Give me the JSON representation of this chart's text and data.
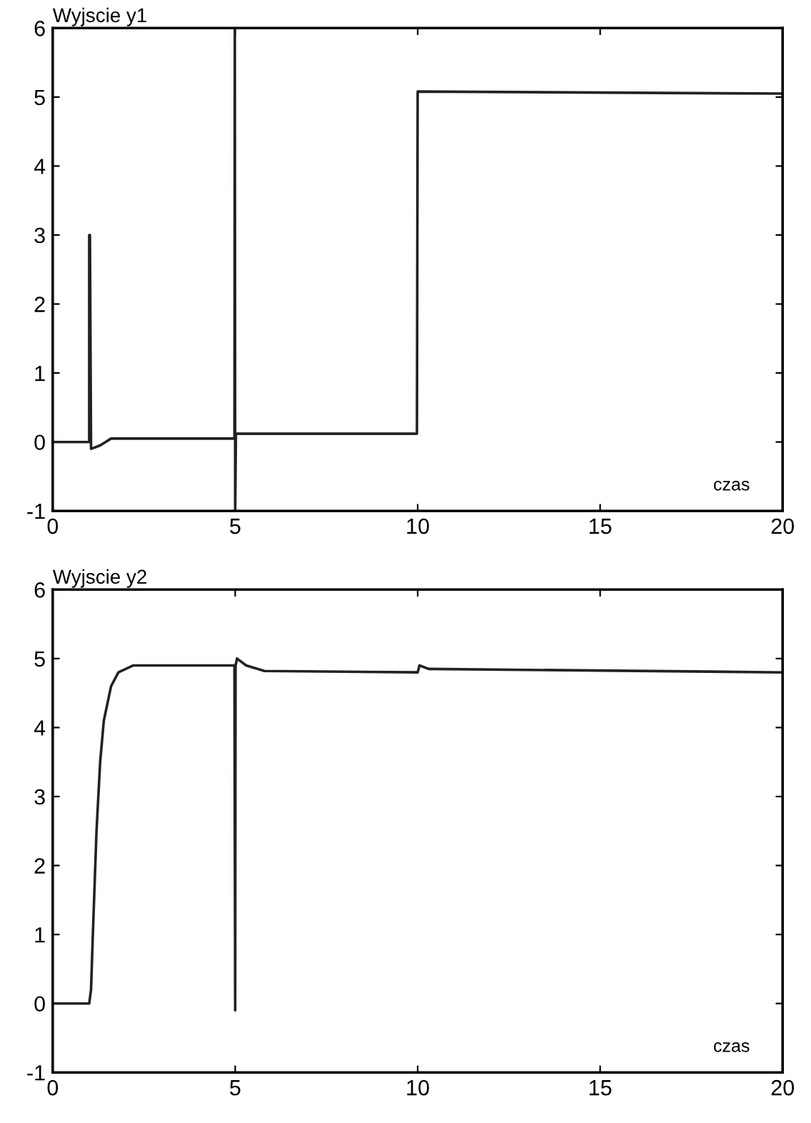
{
  "chart_data": [
    {
      "type": "line",
      "title": "Wyjscie y1",
      "xlabel": "czas",
      "xlim": [
        0,
        20
      ],
      "ylim": [
        -1,
        6
      ],
      "xticks": [
        0,
        5,
        10,
        15,
        20
      ],
      "yticks": [
        -1,
        0,
        1,
        2,
        3,
        4,
        5,
        6
      ],
      "grid": false,
      "legend": false,
      "marker": "none",
      "line_style": "solid",
      "series": [
        {
          "color": "#222222",
          "x": [
            0,
            1.0,
            1.0,
            1.02,
            1.05,
            1.3,
            1.6,
            4.98,
            4.99,
            5.0,
            5.02,
            5.05,
            5.5,
            9.98,
            10.0,
            20
          ],
          "values": [
            0,
            0,
            3.0,
            3.0,
            -0.1,
            -0.05,
            0.05,
            0.05,
            6,
            -1,
            0.12,
            0.12,
            0.12,
            0.12,
            5.08,
            5.05
          ]
        }
      ]
    },
    {
      "type": "line",
      "title": "Wyjscie y2",
      "xlabel": "czas",
      "xlim": [
        0,
        20
      ],
      "ylim": [
        -1,
        6
      ],
      "xticks": [
        0,
        5,
        10,
        15,
        20
      ],
      "yticks": [
        -1,
        0,
        1,
        2,
        3,
        4,
        5,
        6
      ],
      "grid": false,
      "legend": false,
      "marker": "none",
      "line_style": "solid",
      "series": [
        {
          "color": "#222222",
          "x": [
            0,
            1.0,
            1.05,
            1.1,
            1.2,
            1.3,
            1.4,
            1.6,
            1.8,
            2.2,
            4.98,
            4.99,
            5.0,
            5.01,
            5.05,
            5.3,
            5.8,
            10.0,
            10.05,
            10.3,
            20
          ],
          "values": [
            0,
            0,
            0.2,
            1.0,
            2.5,
            3.5,
            4.1,
            4.6,
            4.8,
            4.9,
            4.9,
            2.4,
            -0.1,
            4.9,
            5.0,
            4.9,
            4.82,
            4.8,
            4.9,
            4.85,
            4.8
          ]
        }
      ]
    }
  ]
}
